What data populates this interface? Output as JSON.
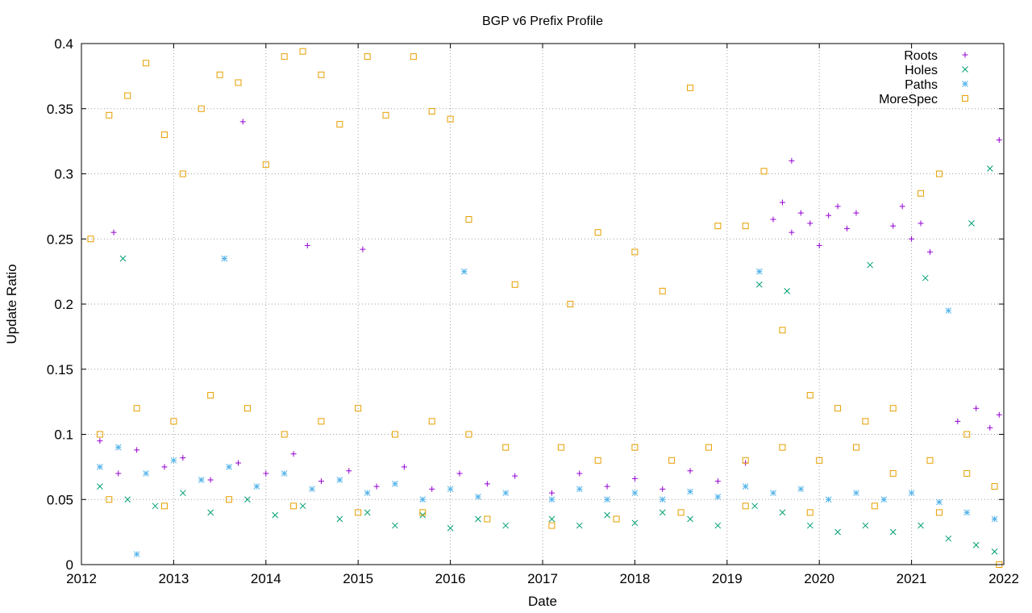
{
  "chart_data": {
    "type": "scatter",
    "title": "BGP v6 Prefix Profile",
    "xlabel": "Date",
    "ylabel": "Update Ratio",
    "xlim": [
      2012,
      2022
    ],
    "ylim": [
      0,
      0.4
    ],
    "x_ticks": [
      "2012",
      "2013",
      "2014",
      "2015",
      "2016",
      "2017",
      "2018",
      "2019",
      "2020",
      "2021",
      "2022"
    ],
    "y_ticks": [
      "0",
      "0.05",
      "0.1",
      "0.15",
      "0.2",
      "0.25",
      "0.3",
      "0.35",
      "0.4"
    ],
    "grid": true,
    "legend_position": "top-right",
    "series": [
      {
        "name": "Roots",
        "marker": "plus",
        "color": "#9400d3",
        "points": [
          [
            2012.2,
            0.095
          ],
          [
            2012.4,
            0.07
          ],
          [
            2012.6,
            0.088
          ],
          [
            2012.9,
            0.075
          ],
          [
            2013.1,
            0.082
          ],
          [
            2013.4,
            0.065
          ],
          [
            2013.7,
            0.078
          ],
          [
            2014.0,
            0.07
          ],
          [
            2014.3,
            0.085
          ],
          [
            2014.6,
            0.064
          ],
          [
            2014.9,
            0.072
          ],
          [
            2015.2,
            0.06
          ],
          [
            2015.5,
            0.075
          ],
          [
            2015.8,
            0.058
          ],
          [
            2016.1,
            0.07
          ],
          [
            2016.4,
            0.062
          ],
          [
            2016.7,
            0.068
          ],
          [
            2017.1,
            0.055
          ],
          [
            2017.4,
            0.07
          ],
          [
            2017.7,
            0.06
          ],
          [
            2018.0,
            0.066
          ],
          [
            2018.3,
            0.058
          ],
          [
            2018.6,
            0.072
          ],
          [
            2018.9,
            0.064
          ],
          [
            2019.2,
            0.078
          ],
          [
            2019.5,
            0.265
          ],
          [
            2019.6,
            0.278
          ],
          [
            2019.7,
            0.255
          ],
          [
            2019.8,
            0.27
          ],
          [
            2019.9,
            0.262
          ],
          [
            2020.0,
            0.245
          ],
          [
            2020.1,
            0.268
          ],
          [
            2020.2,
            0.275
          ],
          [
            2020.3,
            0.258
          ],
          [
            2020.4,
            0.27
          ],
          [
            2020.8,
            0.26
          ],
          [
            2020.9,
            0.275
          ],
          [
            2021.0,
            0.25
          ],
          [
            2021.1,
            0.262
          ],
          [
            2021.2,
            0.24
          ],
          [
            2021.5,
            0.11
          ],
          [
            2021.7,
            0.12
          ],
          [
            2021.85,
            0.105
          ],
          [
            2021.95,
            0.115
          ],
          [
            2012.35,
            0.255
          ],
          [
            2013.75,
            0.34
          ],
          [
            2014.45,
            0.245
          ],
          [
            2015.05,
            0.242
          ],
          [
            2019.7,
            0.31
          ],
          [
            2021.95,
            0.326
          ]
        ]
      },
      {
        "name": "Holes",
        "marker": "x",
        "color": "#009e73",
        "points": [
          [
            2012.2,
            0.06
          ],
          [
            2012.5,
            0.05
          ],
          [
            2012.8,
            0.045
          ],
          [
            2013.1,
            0.055
          ],
          [
            2013.4,
            0.04
          ],
          [
            2013.8,
            0.05
          ],
          [
            2014.1,
            0.038
          ],
          [
            2014.4,
            0.045
          ],
          [
            2014.8,
            0.035
          ],
          [
            2015.1,
            0.04
          ],
          [
            2015.4,
            0.03
          ],
          [
            2015.7,
            0.038
          ],
          [
            2016.0,
            0.028
          ],
          [
            2016.3,
            0.035
          ],
          [
            2016.6,
            0.03
          ],
          [
            2017.1,
            0.035
          ],
          [
            2017.4,
            0.03
          ],
          [
            2017.7,
            0.038
          ],
          [
            2018.0,
            0.032
          ],
          [
            2018.3,
            0.04
          ],
          [
            2018.6,
            0.035
          ],
          [
            2018.9,
            0.03
          ],
          [
            2019.3,
            0.045
          ],
          [
            2019.6,
            0.04
          ],
          [
            2019.9,
            0.03
          ],
          [
            2020.2,
            0.025
          ],
          [
            2020.5,
            0.03
          ],
          [
            2020.8,
            0.025
          ],
          [
            2021.1,
            0.03
          ],
          [
            2021.4,
            0.02
          ],
          [
            2021.7,
            0.015
          ],
          [
            2021.9,
            0.01
          ],
          [
            2012.45,
            0.235
          ],
          [
            2019.35,
            0.215
          ],
          [
            2019.65,
            0.21
          ],
          [
            2020.55,
            0.23
          ],
          [
            2021.15,
            0.22
          ],
          [
            2021.85,
            0.304
          ],
          [
            2021.65,
            0.262
          ]
        ]
      },
      {
        "name": "Paths",
        "marker": "star",
        "color": "#56b4e9",
        "points": [
          [
            2012.2,
            0.075
          ],
          [
            2012.4,
            0.09
          ],
          [
            2012.7,
            0.07
          ],
          [
            2013.0,
            0.08
          ],
          [
            2013.3,
            0.065
          ],
          [
            2013.6,
            0.075
          ],
          [
            2013.9,
            0.06
          ],
          [
            2014.2,
            0.07
          ],
          [
            2014.5,
            0.058
          ],
          [
            2014.8,
            0.065
          ],
          [
            2015.1,
            0.055
          ],
          [
            2015.4,
            0.062
          ],
          [
            2015.7,
            0.05
          ],
          [
            2016.0,
            0.058
          ],
          [
            2016.3,
            0.052
          ],
          [
            2016.6,
            0.055
          ],
          [
            2017.1,
            0.05
          ],
          [
            2017.4,
            0.058
          ],
          [
            2017.7,
            0.05
          ],
          [
            2018.0,
            0.055
          ],
          [
            2018.3,
            0.05
          ],
          [
            2018.6,
            0.056
          ],
          [
            2018.9,
            0.052
          ],
          [
            2019.2,
            0.06
          ],
          [
            2019.5,
            0.055
          ],
          [
            2019.8,
            0.058
          ],
          [
            2020.1,
            0.05
          ],
          [
            2020.4,
            0.055
          ],
          [
            2020.7,
            0.05
          ],
          [
            2021.0,
            0.055
          ],
          [
            2021.3,
            0.048
          ],
          [
            2021.6,
            0.04
          ],
          [
            2021.9,
            0.035
          ],
          [
            2012.6,
            0.008
          ],
          [
            2013.55,
            0.235
          ],
          [
            2016.15,
            0.225
          ],
          [
            2019.35,
            0.225
          ],
          [
            2021.4,
            0.195
          ]
        ]
      },
      {
        "name": "MoreSpec",
        "marker": "square",
        "color": "#e69f00",
        "points": [
          [
            2012.1,
            0.25
          ],
          [
            2012.3,
            0.345
          ],
          [
            2012.5,
            0.36
          ],
          [
            2012.7,
            0.385
          ],
          [
            2012.9,
            0.33
          ],
          [
            2013.1,
            0.3
          ],
          [
            2013.3,
            0.35
          ],
          [
            2013.5,
            0.376
          ],
          [
            2013.7,
            0.37
          ],
          [
            2014.0,
            0.307
          ],
          [
            2014.2,
            0.39
          ],
          [
            2014.4,
            0.394
          ],
          [
            2014.6,
            0.376
          ],
          [
            2014.8,
            0.338
          ],
          [
            2015.1,
            0.39
          ],
          [
            2015.3,
            0.345
          ],
          [
            2015.6,
            0.39
          ],
          [
            2015.8,
            0.348
          ],
          [
            2016.0,
            0.342
          ],
          [
            2016.2,
            0.265
          ],
          [
            2016.7,
            0.215
          ],
          [
            2017.3,
            0.2
          ],
          [
            2017.6,
            0.255
          ],
          [
            2018.0,
            0.24
          ],
          [
            2018.3,
            0.21
          ],
          [
            2018.6,
            0.366
          ],
          [
            2018.9,
            0.26
          ],
          [
            2019.2,
            0.26
          ],
          [
            2019.4,
            0.302
          ],
          [
            2019.6,
            0.18
          ],
          [
            2019.9,
            0.13
          ],
          [
            2020.2,
            0.12
          ],
          [
            2020.5,
            0.11
          ],
          [
            2020.8,
            0.12
          ],
          [
            2021.1,
            0.285
          ],
          [
            2021.3,
            0.3
          ],
          [
            2021.6,
            0.1
          ],
          [
            2021.9,
            0.06
          ],
          [
            2012.2,
            0.1
          ],
          [
            2012.6,
            0.12
          ],
          [
            2013.0,
            0.11
          ],
          [
            2013.4,
            0.13
          ],
          [
            2013.8,
            0.12
          ],
          [
            2014.2,
            0.1
          ],
          [
            2014.6,
            0.11
          ],
          [
            2015.0,
            0.12
          ],
          [
            2015.4,
            0.1
          ],
          [
            2015.8,
            0.11
          ],
          [
            2016.2,
            0.1
          ],
          [
            2016.6,
            0.09
          ],
          [
            2017.2,
            0.09
          ],
          [
            2017.6,
            0.08
          ],
          [
            2018.0,
            0.09
          ],
          [
            2018.4,
            0.08
          ],
          [
            2018.8,
            0.09
          ],
          [
            2019.2,
            0.08
          ],
          [
            2019.6,
            0.09
          ],
          [
            2020.0,
            0.08
          ],
          [
            2020.4,
            0.09
          ],
          [
            2020.8,
            0.07
          ],
          [
            2021.2,
            0.08
          ],
          [
            2021.6,
            0.07
          ],
          [
            2012.3,
            0.05
          ],
          [
            2012.9,
            0.045
          ],
          [
            2013.6,
            0.05
          ],
          [
            2014.3,
            0.045
          ],
          [
            2015.0,
            0.04
          ],
          [
            2015.7,
            0.04
          ],
          [
            2016.4,
            0.035
          ],
          [
            2017.1,
            0.03
          ],
          [
            2017.8,
            0.035
          ],
          [
            2018.5,
            0.04
          ],
          [
            2019.2,
            0.045
          ],
          [
            2019.9,
            0.04
          ],
          [
            2020.6,
            0.045
          ],
          [
            2021.3,
            0.04
          ],
          [
            2021.95,
            0.0
          ]
        ]
      }
    ]
  }
}
